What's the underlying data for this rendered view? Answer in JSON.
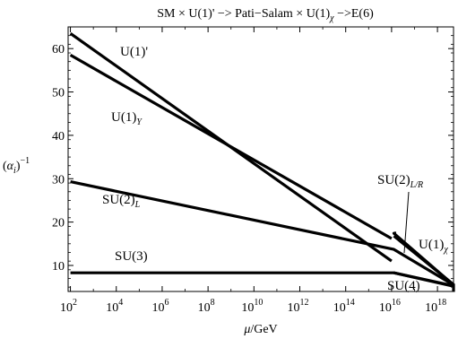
{
  "chart_data": {
    "type": "line",
    "title": "SM × U(1)' −> Pati−Salam × U(1)χ −>E(6)",
    "xlabel": "μ/GeV",
    "ylabel": "(αi)⁻¹",
    "x_scale": "log10",
    "xlim_log10": [
      1.9,
      18.7
    ],
    "ylim": [
      4,
      65
    ],
    "x_tick_exponents": [
      2,
      4,
      6,
      8,
      10,
      12,
      14,
      16,
      18
    ],
    "y_ticks": [
      10,
      20,
      30,
      40,
      50,
      60
    ],
    "grid": false,
    "legend": "none",
    "series": [
      {
        "name": "U(1)'",
        "points": [
          [
            2,
            63.5
          ],
          [
            16,
            11.0
          ]
        ]
      },
      {
        "name": "U(1)Y",
        "points": [
          [
            2,
            58.5
          ],
          [
            16,
            16.2
          ]
        ]
      },
      {
        "name": "SU(2)L",
        "points": [
          [
            2,
            29.3
          ],
          [
            16.1,
            13.7
          ],
          [
            18.7,
            5.5
          ]
        ]
      },
      {
        "name": "SU(3)",
        "points": [
          [
            2,
            8.3
          ],
          [
            16.1,
            8.3
          ],
          [
            18.7,
            5.3
          ]
        ]
      },
      {
        "name": "SU(2)L/R",
        "points": [
          [
            16.1,
            16.8
          ],
          [
            18.7,
            5.6
          ]
        ]
      },
      {
        "name": "U(1)χ",
        "points": [
          [
            16.2,
            17.5
          ],
          [
            16.1,
            17.4
          ],
          [
            18.7,
            5.5
          ]
        ]
      },
      {
        "name": "SU(4)",
        "points": [
          [
            16.1,
            8.3
          ],
          [
            18.7,
            5.2
          ]
        ]
      },
      {
        "name": "",
        "points": [
          [
            18.7,
            5.8
          ],
          [
            18.7,
            3.9
          ]
        ]
      }
    ],
    "annotations": [
      {
        "text": "U(1)'",
        "base": "U(1)'",
        "sub": ""
      },
      {
        "text": "U(1)Y",
        "base": "U(1)",
        "sub": "Y"
      },
      {
        "text": "SU(2)L",
        "base": "SU(2)",
        "sub": "L"
      },
      {
        "text": "SU(3)",
        "base": "SU(3)",
        "sub": ""
      },
      {
        "text": "SU(2)L/R",
        "base": "SU(2)",
        "sub": "L/R"
      },
      {
        "text": "U(1)χ",
        "base": "U(1)",
        "sub": "χ"
      },
      {
        "text": "SU(4)",
        "base": "SU(4)",
        "sub": ""
      }
    ]
  }
}
